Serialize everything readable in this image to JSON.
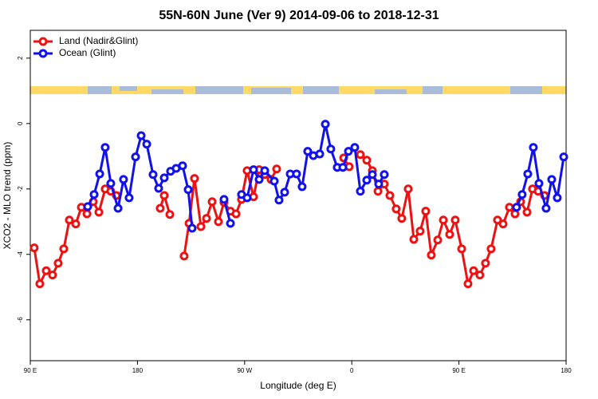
{
  "chart_data": {
    "type": "line",
    "title": "55N-60N June (Ver 9)   2014-09-06 to 2018-12-31",
    "xlabel": "Longitude (deg E)",
    "ylabel": "XCO2 - MLO trend (ppm)",
    "xlim": [
      90,
      540
    ],
    "ylim": [
      -7.25,
      2.85
    ],
    "xticks": [
      {
        "value": 90,
        "label": "90 E"
      },
      {
        "value": 180,
        "label": "180"
      },
      {
        "value": 270,
        "label": "90 W"
      },
      {
        "value": 360,
        "label": "0"
      },
      {
        "value": 450,
        "label": "90 E"
      },
      {
        "value": 540,
        "label": "180"
      }
    ],
    "yticks": [
      -6,
      -4,
      -2,
      0,
      2
    ],
    "legend": "top-left",
    "series": [
      {
        "name": "Land (Nadir&Glint)",
        "color": "#ee1111",
        "x": [
          93.3,
          98,
          103.4,
          108.7,
          113.4,
          118.1,
          122.8,
          128.2,
          132.9,
          137.6,
          142.9,
          147.6,
          152.9,
          157.6,
          162.3,
          null,
          199.1,
          202.5,
          207.2,
          null,
          219.2,
          223.3,
          227.9,
          233.3,
          238,
          242.7,
          248,
          252.7,
          258.1,
          262.8,
          267.4,
          272.1,
          277.5,
          282.2,
          286.9,
          292.2,
          296.9,
          null,
          353.2,
          357.8,
          null,
          367.2,
          372.6,
          377.3,
          382,
          387.3,
          392,
          397.3,
          402,
          407.4,
          412.1,
          417.4,
          422.1,
          426.8,
          432.2,
          436.9,
          442.2,
          446.9,
          452.3,
          457.6,
          462.3,
          467.6,
          472.3,
          477,
          482.4,
          487.1,
          492.4,
          497.1,
          501.8,
          507.2,
          511.8,
          516.5,
          521.9
        ],
        "values": [
          -3.8,
          -4.9,
          -4.5,
          -4.63,
          -4.27,
          -3.83,
          -2.95,
          -3.07,
          -2.56,
          -2.76,
          -2.39,
          -2.71,
          -2.0,
          -2.07,
          -2.2,
          null,
          -2.59,
          -2.2,
          -2.78,
          null,
          -4.05,
          -3.05,
          -1.68,
          -3.15,
          -2.9,
          -2.39,
          -3.0,
          -2.41,
          -2.68,
          -2.76,
          -2.32,
          -1.44,
          -2.24,
          -1.41,
          -1.56,
          -1.71,
          -1.39,
          null,
          -1.05,
          -1.32,
          null,
          -0.95,
          -1.12,
          -1.44,
          -2.07,
          -1.85,
          -2.2,
          -2.61,
          -2.9,
          -2.0,
          -3.54,
          -3.29,
          -2.68,
          -4.02,
          -3.56,
          -2.95,
          -3.39,
          -2.95,
          -3.83,
          -4.9,
          -4.5,
          -4.63,
          -4.27,
          -3.83,
          -2.95,
          -3.07,
          -2.56,
          -2.76,
          -2.39,
          -2.71,
          -2.0,
          -2.07,
          -2.2
        ]
      },
      {
        "name": "Ocean (Glint)",
        "color": "#1111ee",
        "x": [
          138.2,
          143.6,
          148.3,
          152.9,
          157.6,
          163.7,
          168.3,
          173,
          178.4,
          183.1,
          187.8,
          193.1,
          197.8,
          202.5,
          207.8,
          212.5,
          217.9,
          222.6,
          225.9,
          null,
          252.7,
          258.1,
          null,
          267.4,
          272.1,
          277.5,
          282.2,
          286.9,
          294.9,
          298.9,
          303.6,
          308.3,
          313.6,
          318.3,
          323,
          327.7,
          333.1,
          337.8,
          342.4,
          347.8,
          352.5,
          357.2,
          362.5,
          367.2,
          372.6,
          377.3,
          382.6,
          387.3,
          null,
          498.4,
          503.1,
          507.8,
          512.5,
          517.2,
          523.2,
          527.9,
          532.6,
          538
        ],
        "values": [
          -2.54,
          -2.17,
          -1.54,
          -0.73,
          -1.83,
          -2.59,
          -1.71,
          -2.27,
          -1.02,
          -0.37,
          -0.63,
          -1.56,
          -1.98,
          -1.66,
          -1.46,
          -1.37,
          -1.29,
          -2.02,
          -3.2,
          null,
          -2.32,
          -3.05,
          null,
          -2.17,
          -2.27,
          -1.41,
          -1.71,
          -1.44,
          -1.76,
          -2.34,
          -2.1,
          -1.54,
          -1.54,
          -1.93,
          -0.85,
          -0.98,
          -0.93,
          -0.02,
          -0.78,
          -1.34,
          -1.34,
          -0.85,
          -0.73,
          -2.07,
          -1.73,
          -1.56,
          -1.85,
          -1.56,
          null,
          -2.56,
          -2.17,
          -1.54,
          -0.73,
          -1.83,
          -2.59,
          -1.71,
          -2.27,
          -1.02
        ]
      }
    ]
  }
}
